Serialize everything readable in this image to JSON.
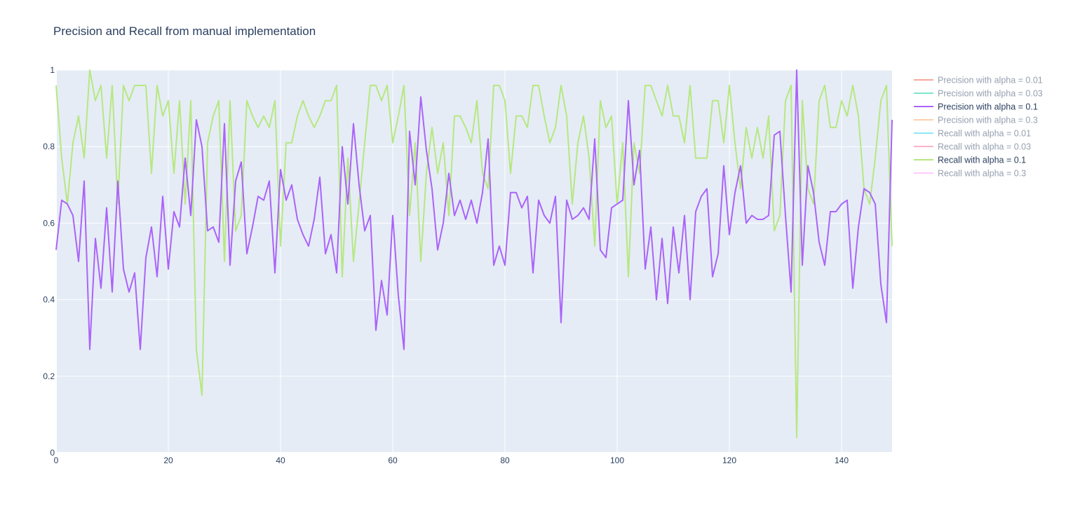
{
  "chart_data": {
    "type": "line",
    "title": "Precision and Recall from manual implementation",
    "xlabel": "",
    "ylabel": "",
    "xlim": [
      0,
      149
    ],
    "ylim": [
      0,
      1
    ],
    "x_ticks": [
      "0",
      "20",
      "40",
      "60",
      "80",
      "100",
      "120",
      "140"
    ],
    "y_ticks": [
      "0",
      "0.2",
      "0.4",
      "0.6",
      "0.8",
      "1"
    ],
    "grid": true,
    "legend_position": "right",
    "plot_background": "#e5ecf6",
    "series": [
      {
        "name": "Precision with alpha = 0.01",
        "color": "#ef553b",
        "visible": false,
        "values": []
      },
      {
        "name": "Precision with alpha = 0.03",
        "color": "#00cc96",
        "visible": false,
        "values": []
      },
      {
        "name": "Precision with alpha = 0.1",
        "color": "#ab63fa",
        "visible": true,
        "values": [
          0.53,
          0.66,
          0.65,
          0.62,
          0.5,
          0.71,
          0.27,
          0.56,
          0.43,
          0.64,
          0.42,
          0.71,
          0.48,
          0.42,
          0.47,
          0.27,
          0.51,
          0.59,
          0.46,
          0.67,
          0.48,
          0.63,
          0.59,
          0.77,
          0.62,
          0.87,
          0.8,
          0.58,
          0.59,
          0.55,
          0.86,
          0.49,
          0.71,
          0.76,
          0.52,
          0.59,
          0.67,
          0.66,
          0.71,
          0.47,
          0.74,
          0.66,
          0.7,
          0.61,
          0.57,
          0.54,
          0.61,
          0.72,
          0.52,
          0.57,
          0.47,
          0.8,
          0.65,
          0.86,
          0.7,
          0.58,
          0.62,
          0.32,
          0.45,
          0.36,
          0.62,
          0.41,
          0.27,
          0.84,
          0.7,
          0.93,
          0.79,
          0.69,
          0.53,
          0.6,
          0.73,
          0.62,
          0.66,
          0.61,
          0.66,
          0.6,
          0.68,
          0.82,
          0.49,
          0.54,
          0.49,
          0.68,
          0.68,
          0.64,
          0.67,
          0.47,
          0.66,
          0.62,
          0.6,
          0.67,
          0.34,
          0.66,
          0.61,
          0.62,
          0.64,
          0.61,
          0.82,
          0.53,
          0.51,
          0.64,
          0.65,
          0.66,
          0.92,
          0.7,
          0.79,
          0.48,
          0.59,
          0.4,
          0.56,
          0.39,
          0.59,
          0.47,
          0.62,
          0.4,
          0.63,
          0.67,
          0.69,
          0.46,
          0.52,
          0.75,
          0.57,
          0.68,
          0.75,
          0.6,
          0.62,
          0.61,
          0.61,
          0.62,
          0.83,
          0.84,
          0.62,
          0.42,
          1.0,
          0.49,
          0.75,
          0.68,
          0.55,
          0.49,
          0.63,
          0.63,
          0.65,
          0.66,
          0.43,
          0.59,
          0.69,
          0.68,
          0.65,
          0.44,
          0.34,
          0.87
        ]
      },
      {
        "name": "Precision with alpha = 0.3",
        "color": "#ffa15a",
        "visible": false,
        "values": []
      },
      {
        "name": "Recall with alpha = 0.01",
        "color": "#19d3f3",
        "visible": false,
        "values": []
      },
      {
        "name": "Recall with alpha = 0.03",
        "color": "#ff6692",
        "visible": false,
        "values": []
      },
      {
        "name": "Recall with alpha = 0.1",
        "color": "#b6e880",
        "visible": true,
        "values": [
          0.96,
          0.77,
          0.65,
          0.81,
          0.88,
          0.77,
          1.0,
          0.92,
          0.96,
          0.77,
          0.96,
          0.65,
          0.96,
          0.92,
          0.96,
          0.96,
          0.96,
          0.73,
          0.96,
          0.88,
          0.92,
          0.73,
          0.92,
          0.65,
          0.92,
          0.27,
          0.15,
          0.81,
          0.88,
          0.92,
          0.5,
          0.92,
          0.58,
          0.62,
          0.92,
          0.88,
          0.85,
          0.88,
          0.85,
          0.92,
          0.54,
          0.81,
          0.81,
          0.88,
          0.92,
          0.88,
          0.85,
          0.88,
          0.92,
          0.92,
          0.96,
          0.46,
          0.77,
          0.5,
          0.65,
          0.81,
          0.96,
          0.96,
          0.92,
          0.96,
          0.81,
          0.88,
          0.96,
          0.62,
          0.81,
          0.5,
          0.73,
          0.85,
          0.73,
          0.81,
          0.62,
          0.88,
          0.88,
          0.85,
          0.81,
          0.92,
          0.73,
          0.69,
          0.96,
          0.96,
          0.92,
          0.73,
          0.88,
          0.88,
          0.85,
          0.96,
          0.96,
          0.88,
          0.81,
          0.85,
          0.96,
          0.88,
          0.65,
          0.81,
          0.88,
          0.77,
          0.54,
          0.92,
          0.85,
          0.88,
          0.65,
          0.81,
          0.46,
          0.81,
          0.73,
          0.96,
          0.96,
          0.92,
          0.88,
          0.96,
          0.88,
          0.88,
          0.81,
          0.96,
          0.77,
          0.77,
          0.77,
          0.92,
          0.92,
          0.81,
          0.96,
          0.81,
          0.69,
          0.85,
          0.77,
          0.85,
          0.77,
          0.88,
          0.58,
          0.62,
          0.92,
          0.96,
          0.04,
          0.92,
          0.69,
          0.65,
          0.92,
          0.96,
          0.85,
          0.85,
          0.92,
          0.88,
          0.96,
          0.88,
          0.69,
          0.65,
          0.77,
          0.92,
          0.96,
          0.54
        ]
      },
      {
        "name": "Recall with alpha = 0.3",
        "color": "#ff97ff",
        "visible": false,
        "values": []
      }
    ]
  }
}
